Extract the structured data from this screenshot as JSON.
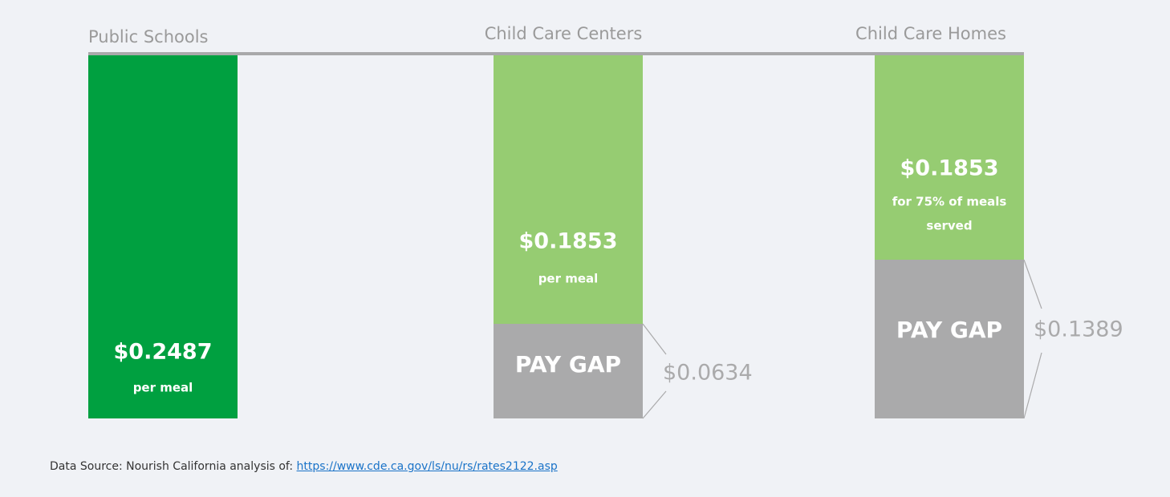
{
  "columns": [
    {
      "label": "Public Schools",
      "amount": "$0.2487",
      "note_lines": [
        "per meal"
      ]
    },
    {
      "label": "Child Care Centers",
      "amount": "$0.1853",
      "note_lines": [
        "per meal"
      ],
      "gap_label": "PAY GAP",
      "gap_amount": "$0.0634"
    },
    {
      "label": "Child Care Homes",
      "amount": "$0.1853",
      "note_lines": [
        "for 75% of meals",
        "served"
      ],
      "gap_label": "PAY GAP",
      "gap_amount": "$0.1389"
    }
  ],
  "footer": {
    "text": "Data Source: Nourish California analysis of: ",
    "link": "https://www.cde.ca.gov/ls/nu/rs/rates2122.asp"
  }
}
